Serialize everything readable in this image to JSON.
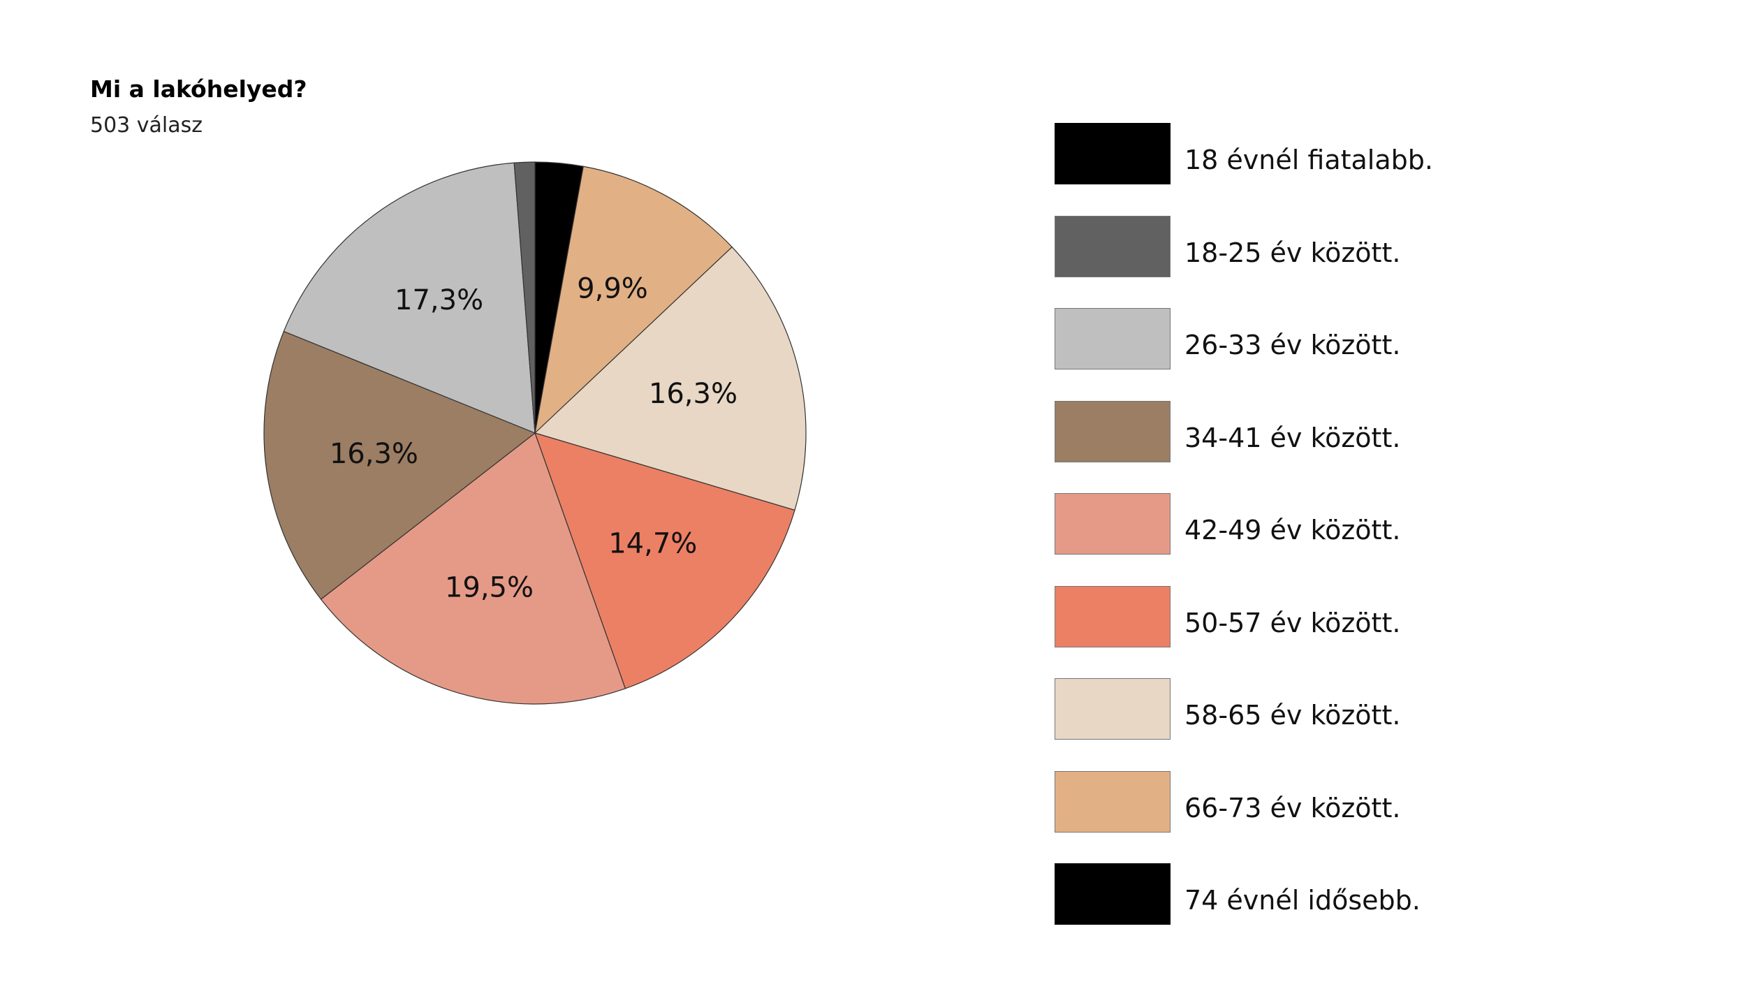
{
  "chart_data": {
    "type": "pie",
    "title": "Mi a lakóhelyed?",
    "subtitle": "503 válasz",
    "categories": [
      "18 évnél fiatalabb.",
      "18-25 év között.",
      "26-33 év között.",
      "34-41 év között.",
      "42-49 év között.",
      "50-57 év között.",
      "58-65 év között.",
      "66-73 év között.",
      "74 évnél idősebb."
    ],
    "values": [
      0,
      1.2,
      17.3,
      16.3,
      19.5,
      14.7,
      16.3,
      9.9,
      2.8
    ],
    "value_labels": [
      "",
      "",
      "17,3%",
      "16,3%",
      "19,5%",
      "14,7%",
      "16,3%",
      "9,9%",
      ""
    ],
    "colors": [
      "#000000",
      "#616161",
      "#bfbfbf",
      "#9b7e64",
      "#e59a87",
      "#ec8064",
      "#e7d7c4",
      "#e2b085",
      "#000000"
    ],
    "legend_position": "right",
    "start": "top",
    "direction": "clockwise"
  }
}
